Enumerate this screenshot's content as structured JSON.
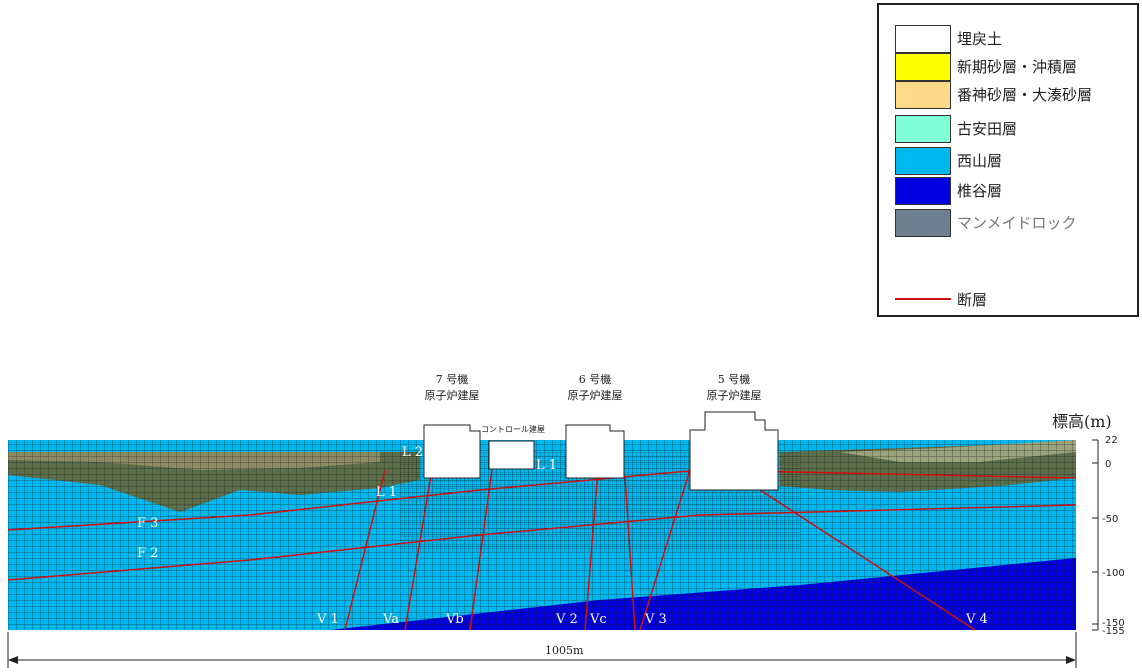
{
  "legend": {
    "items": [
      {
        "label": "埋戻土",
        "color": "#ffffff"
      },
      {
        "label": "新期砂層・沖積層",
        "color": "#ffff00"
      },
      {
        "label": "番神砂層・大湊砂層",
        "color": "#ffd98a"
      },
      {
        "label": "古安田層",
        "color": "#80ffd8"
      },
      {
        "label": "西山層",
        "color": "#00b8f0"
      },
      {
        "label": "椎谷層",
        "color": "#0000e0"
      },
      {
        "label": "マンメイドロック",
        "color": "#6e7f90"
      }
    ],
    "fault": {
      "label": "断層",
      "color": "#d01010"
    }
  },
  "buildings": [
    {
      "line1": "7 号機",
      "line2": "原子炉建屋"
    },
    {
      "line1": "コントロール建屋",
      "line2": ""
    },
    {
      "line1": "6 号機",
      "line2": "原子炉建屋"
    },
    {
      "line1": "5 号機",
      "line2": "原子炉建屋"
    }
  ],
  "faults": [
    "F 3",
    "F 2",
    "L 1",
    "L 2",
    "L 1",
    "V 1",
    "Va",
    "Vb",
    "V 2",
    "Vc",
    "V 3",
    "V 4"
  ],
  "axis": {
    "title": "標高(m)",
    "ticks": [
      "22",
      "0",
      "-50",
      "-100",
      "-150",
      "-155"
    ]
  },
  "dimension": {
    "label": "1005m"
  }
}
